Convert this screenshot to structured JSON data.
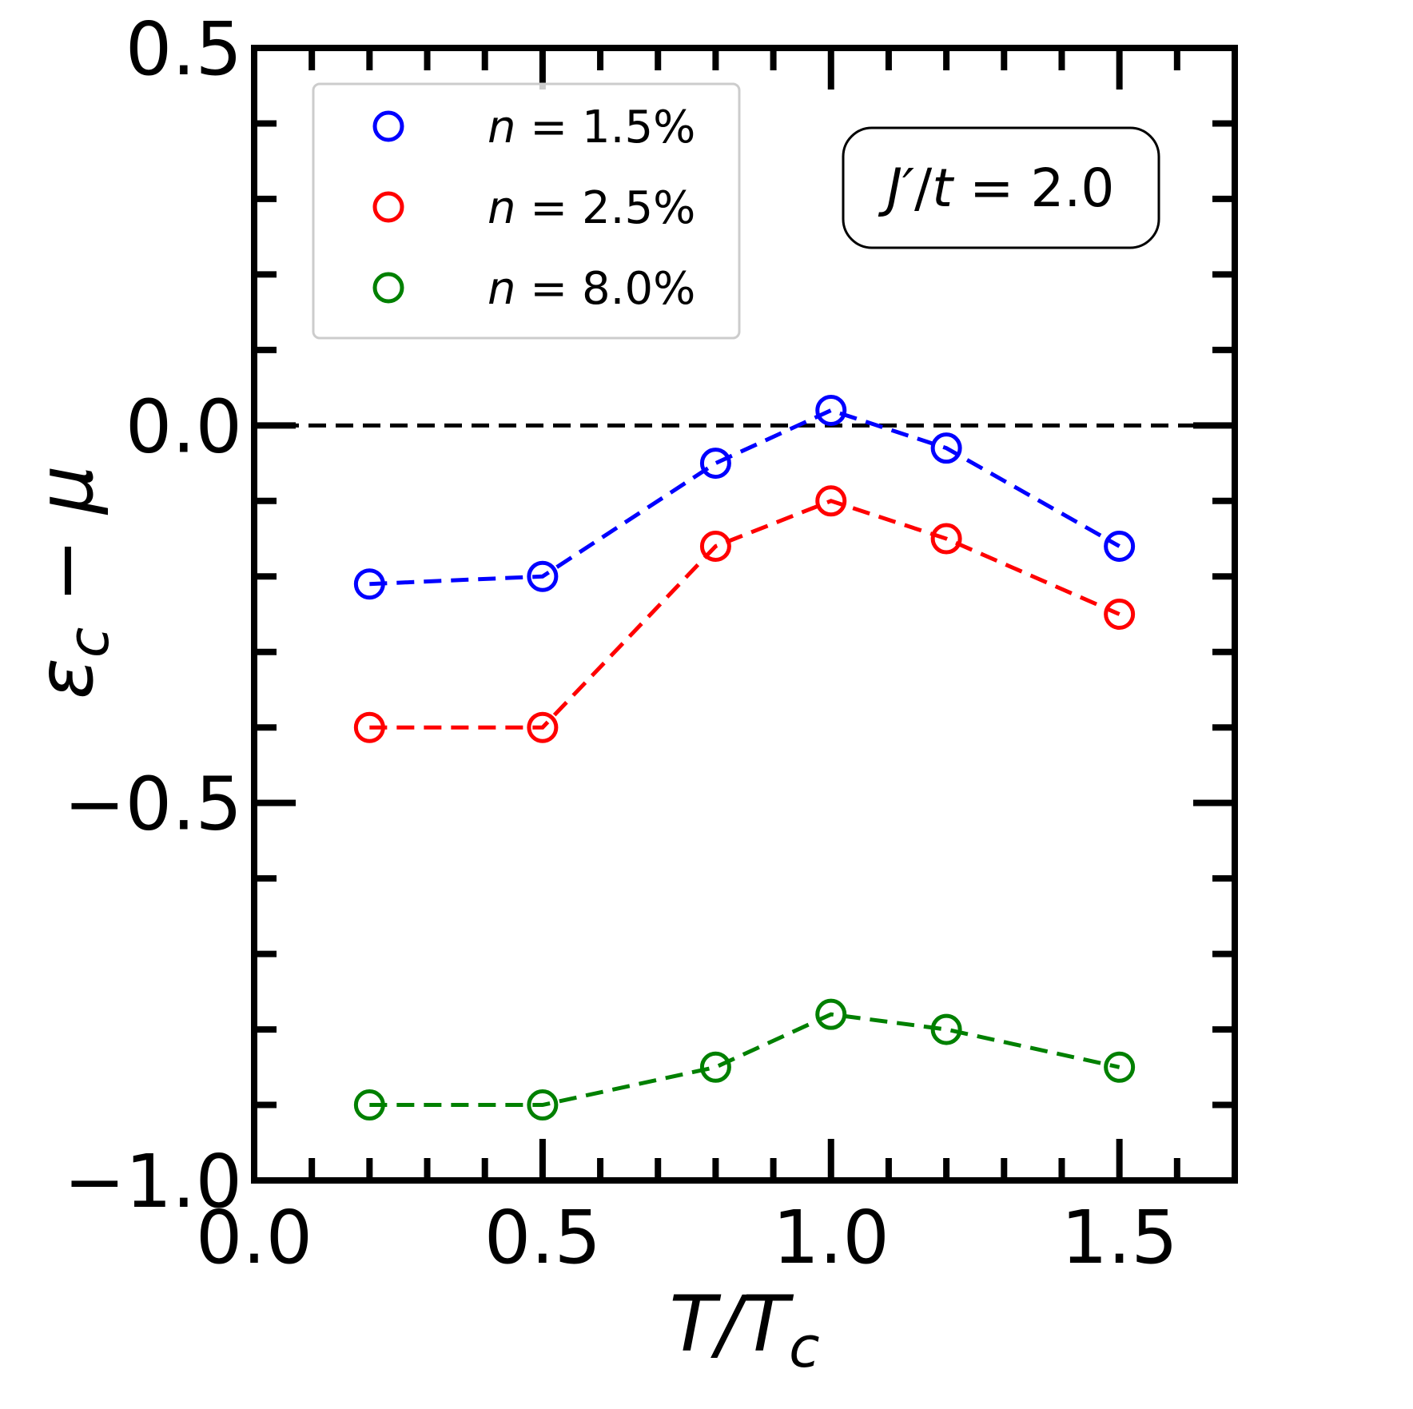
{
  "chart_data": {
    "type": "line",
    "xlabel": "T/T_c",
    "ylabel": "ε_c − μ",
    "xlim": [
      0.0,
      1.7
    ],
    "ylim": [
      -1.0,
      0.5
    ],
    "xticks": [
      0.0,
      0.5,
      1.0,
      1.5
    ],
    "yticks": [
      0.5,
      0.0,
      -0.5,
      -1.0
    ],
    "xtick_labels": [
      "0.0",
      "0.5",
      "1.0",
      "1.5"
    ],
    "ytick_labels": [
      "0.5",
      "0.0",
      "−0.5",
      "−1.0"
    ],
    "reference_line": {
      "y": 0.0,
      "style": "dashed",
      "color": "#000000"
    },
    "x": [
      0.2,
      0.5,
      0.8,
      1.0,
      1.2,
      1.5
    ],
    "series": [
      {
        "name": "n = 1.5%",
        "n_value": "1.5%",
        "color": "#0000ff",
        "values": [
          -0.21,
          -0.2,
          -0.05,
          0.02,
          -0.03,
          -0.16
        ]
      },
      {
        "name": "n = 2.5%",
        "n_value": "2.5%",
        "color": "#ff0000",
        "values": [
          -0.4,
          -0.4,
          -0.16,
          -0.1,
          -0.15,
          -0.25
        ]
      },
      {
        "name": "n = 8.0%",
        "n_value": "8.0%",
        "color": "#008000",
        "values": [
          -0.9,
          -0.9,
          -0.85,
          -0.78,
          -0.8,
          -0.85
        ]
      }
    ],
    "legend_position": "upper-left",
    "annotation": {
      "text": "J′/t = 2.0",
      "position": "upper-center-right"
    }
  }
}
